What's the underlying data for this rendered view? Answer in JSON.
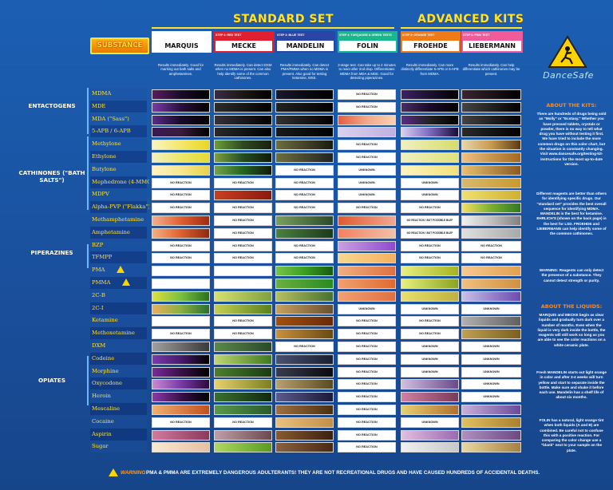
{
  "header": {
    "standard_set": "STANDARD SET",
    "advanced_kits": "ADVANCED KITS",
    "substance": "SUBSTANCE"
  },
  "reagents": [
    {
      "step": "STEP 1: WHITE TEST",
      "name": "MARQUIS",
      "color": "#ffffff",
      "desc": "Results immediately. Good for marking out bath salts and amphetamines."
    },
    {
      "step": "STEP 2: RED TEST",
      "name": "MECKE",
      "color": "#e02030",
      "desc": "Results immediately. Can detect DXM when no MDMA is present. Can also help identify some of the common cathinones."
    },
    {
      "step": "STEP 3: BLUE TEST",
      "name": "MANDELIN",
      "color": "#2a44a8",
      "desc": "Results immediately. Can detect PMA/PMMA when no MDMA is present. Also good for testing ketamine, MXE."
    },
    {
      "step": "STEP 4: TURQUOISE & GREEN TESTS",
      "name": "FOLIN",
      "color": "#19b78c",
      "desc": "2-stage test. Can take up to 2 minutes to react after 2nd drop. Differentiates MDMA from MDA & MDE. Good for detecting piperazines."
    },
    {
      "step": "STEP 5: ORANGE TEST",
      "name": "FROEHDE",
      "color": "#f07a18",
      "desc": "Results immediately. Can more distinctly differentiate 5-APB or 6-APB from MDMA."
    },
    {
      "step": "STEP 6: PINK TEST",
      "name": "LIEBERMANN",
      "color": "#f15b9a",
      "desc": "Results immediately. Can help differentiate which cathinones may be present."
    }
  ],
  "classes": [
    "ENTACTOGENS",
    "CATHINONES (\"BATH SALTS\")",
    "PIPERAZINES",
    "OPIATES"
  ],
  "nr": "NO REACTION",
  "unk": "UNKNOWN",
  "nrpos": "NO REACTION \\ BUT POSSIBLE BLEF",
  "substances": [
    "MDMA",
    "MDE",
    "MDA (\"Sass\")",
    "5-APB / 6-APB",
    "Methylone",
    "Ethylone",
    "Butylone",
    "Mephedrone (4-MMC)",
    "MDPV",
    "Alpha-PVP (\"Flakka\")",
    "Methamphetamine",
    "Amphetamine",
    "BZP",
    "TFMPP",
    "PMA",
    "PMMA",
    "2C-B",
    "2C-I",
    "Ketamine",
    "Methoxetamine",
    "DXM",
    "Codeine",
    "Morphine",
    "Oxycodone",
    "Heroin",
    "Mescaline",
    "Cocaine",
    "Aspirin",
    "Sugar"
  ],
  "logo": {
    "name": "DanceSafe"
  },
  "about_kits": {
    "title": "ABOUT THE KITS:",
    "text": "There are hundreds of drugs being sold as \"Molly\" or \"Ecstasy.\" Whether you have pressed tablets, crystals or powder, there is no way to tell what drug you have without testing it first. We have tried to include the more common drugs on this color chart, but the situation is constantly changing. Visit www.dancesafe.org/testing-kit-instructions for the most up-to-date version.",
    "text2": "Different reagents are better than others for identifying specific drugs. Our \"standard set\" provides the best overall sequence for identifying MDMA. MANDELIN is the best for ketamine. EHRLICH'S (shown on the back page) is the best for LSD. FROEHDE and LIEBERMANN can help identify some of the common cathinones.",
    "warning": "WARNING: Reagents can only detect the presence of a substance. They cannot detect strength or purity."
  },
  "about_liquids": {
    "title": "ABOUT THE LIQUIDS:",
    "text": "MARQUIS and MECKE begin as clear liquids and gradually turn dark over a number of months. Even when the liquid is very dark inside the bottle, the reagents will still work so long as you are able to see the color reactions on a white ceramic plate.",
    "text2": "Fresh MANDELIN starts out light orange in color and after 3-4 weeks will turn yellow and start to separate inside the bottle. Make sure and shake it before each use. Mandelin has a shelf life of about six months.",
    "text3": "FOLIN has a natural, light orange tint when both liquids (A and B) are combined. Be careful not to confuse this with a positive reaction. For comparing the color change use a \"blank\" next to your sample on the plate."
  },
  "footer": {
    "warning_label": "WARNING",
    "text": "PMA & PMMA ARE EXTREMELY DANGEROUS ADULTERANTS! THEY ARE NOT RECREATIONAL DRUGS AND HAVE CAUSED HUNDREDS OF ACCIDENTAL DEATHS."
  }
}
